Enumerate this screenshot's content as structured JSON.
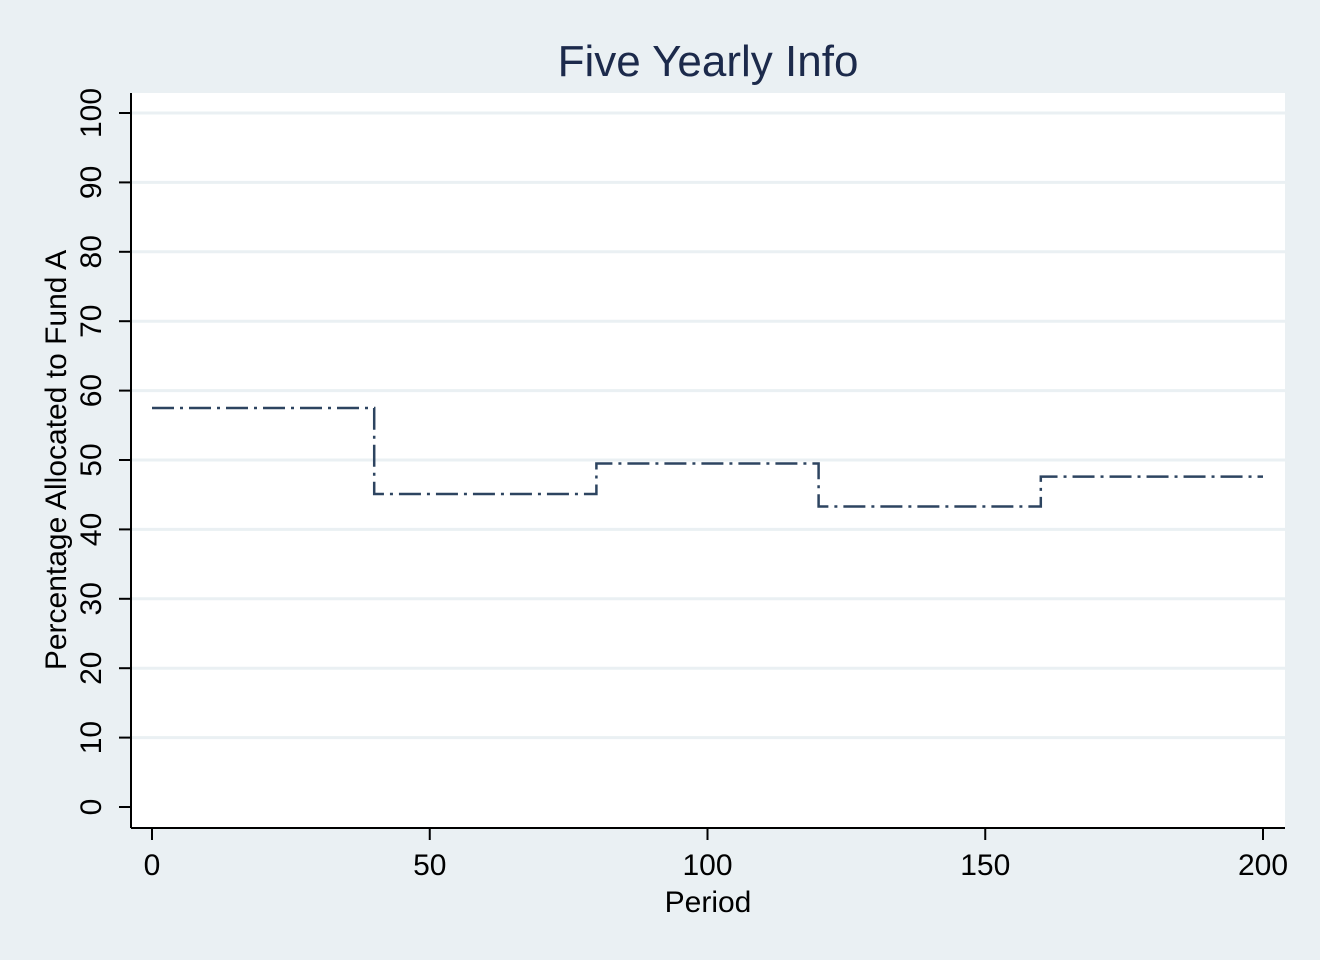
{
  "chart_data": {
    "type": "line",
    "title": "Five Yearly Info",
    "xlabel": "Period",
    "ylabel": "Percentage Allocated to Fund A",
    "xlim": [
      0,
      200
    ],
    "ylim": [
      0,
      100
    ],
    "x_ticks": [
      0,
      50,
      100,
      150,
      200
    ],
    "y_ticks": [
      0,
      10,
      20,
      30,
      40,
      50,
      60,
      70,
      80,
      90,
      100
    ],
    "grid": true,
    "line_style": "dash-dot step",
    "series": [
      {
        "segments": [
          {
            "x_start": 0,
            "x_end": 40,
            "y": 57.5
          },
          {
            "x_start": 40,
            "x_end": 80,
            "y": 45.1
          },
          {
            "x_start": 80,
            "x_end": 120,
            "y": 49.5
          },
          {
            "x_start": 120,
            "x_end": 160,
            "y": 43.3
          },
          {
            "x_start": 160,
            "x_end": 200,
            "y": 47.6
          }
        ]
      }
    ],
    "colors": {
      "background": "#eaf0f3",
      "plot_background": "#ffffff",
      "grid": "#eaf0f3",
      "line": "#2d4460",
      "title": "#1c2a4b",
      "axis": "#000000"
    }
  }
}
